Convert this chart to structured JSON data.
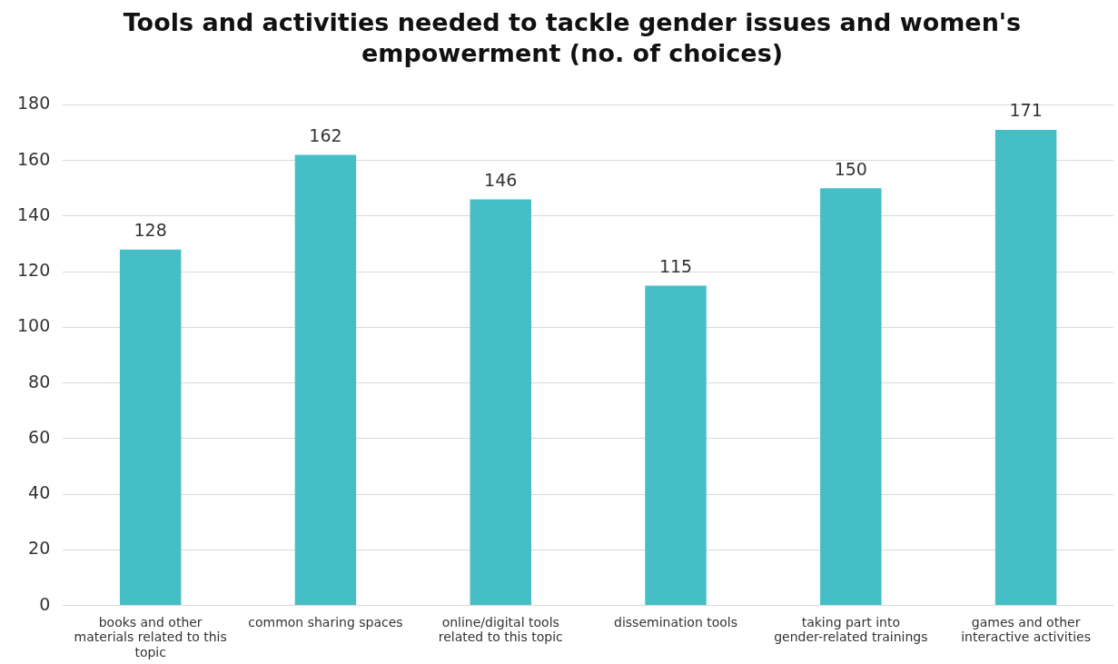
{
  "chart_data": {
    "type": "bar",
    "title": "Tools and activities needed to tackle gender issues and women's empowerment (no. of choices)",
    "categories": [
      "books and other materials related to this topic",
      "common sharing spaces",
      "online/digital tools related to this topic",
      "dissemination tools",
      "taking part into gender-related trainings",
      "games and other interactive activities"
    ],
    "values": [
      128,
      162,
      146,
      115,
      150,
      171
    ],
    "color": "#45bec6",
    "ylim": [
      0,
      180
    ],
    "yticks": [
      0,
      20,
      40,
      60,
      80,
      100,
      120,
      140,
      160,
      180
    ],
    "grid": "y",
    "data_labels": true
  }
}
